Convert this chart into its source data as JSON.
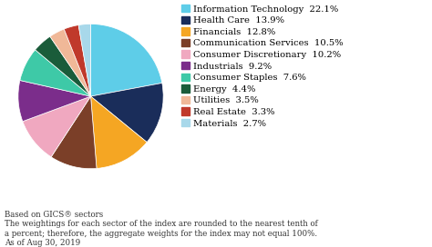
{
  "labels": [
    "Information Technology",
    "Health Care",
    "Financials",
    "Communication Services",
    "Consumer Discretionary",
    "Industrials",
    "Consumer Staples",
    "Energy",
    "Utilities",
    "Real Estate",
    "Materials"
  ],
  "values": [
    22.1,
    13.9,
    12.8,
    10.5,
    10.2,
    9.2,
    7.6,
    4.4,
    3.5,
    3.3,
    2.7
  ],
  "colors": [
    "#5ecde8",
    "#1a2d5a",
    "#f5a623",
    "#7b3f28",
    "#f0a8c0",
    "#7b2d8b",
    "#3ec9a7",
    "#1a5c3a",
    "#f0b898",
    "#c0392b",
    "#a8d8ea"
  ],
  "footnote_line1": "Based on GICS® sectors",
  "footnote_line2": "The weightings for each sector of the index are rounded to the nearest tenth of",
  "footnote_line3": "a percent; therefore, the aggregate weights for the index may not equal 100%.",
  "footnote_line4": "As of Aug 30, 2019",
  "background_color": "#ffffff",
  "legend_fontsize": 7.2,
  "footnote_fontsize": 6.2
}
